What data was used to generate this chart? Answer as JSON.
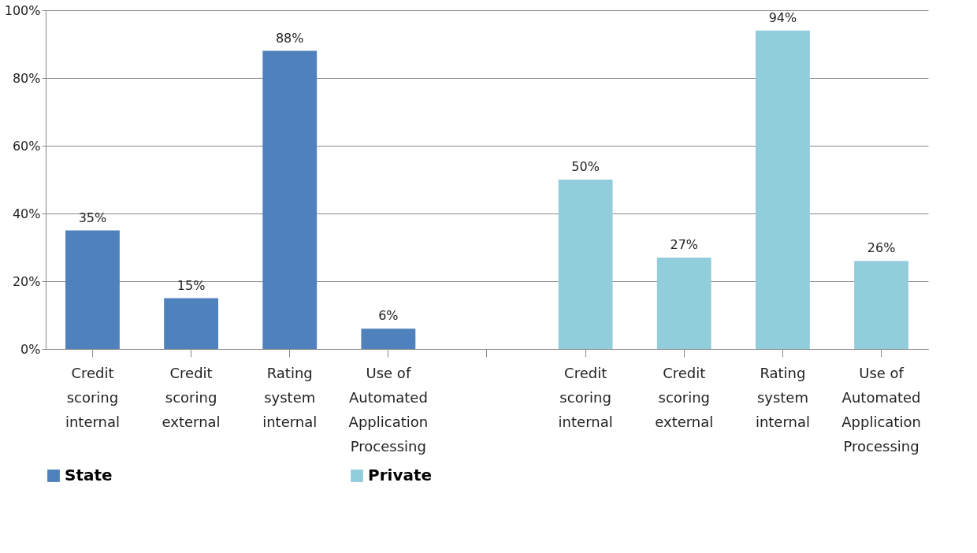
{
  "chart_data": {
    "type": "bar",
    "categories": [
      "Credit scoring internal",
      "Credit scoring external",
      "Rating system internal",
      "Use of Automated Application Processing",
      null,
      "Credit scoring internal",
      "Credit scoring external",
      "Rating system internal",
      "Use of Automated Application Processing"
    ],
    "series": [
      {
        "name": "State",
        "color": "#4f81bd",
        "values": [
          35,
          15,
          88,
          6,
          null,
          null,
          null,
          null,
          null
        ],
        "value_labels": [
          "35%",
          "15%",
          "88%",
          "6%",
          null,
          null,
          null,
          null,
          null
        ]
      },
      {
        "name": "Private",
        "color": "#92cddc",
        "values": [
          null,
          null,
          null,
          null,
          null,
          50,
          27,
          94,
          26
        ],
        "value_labels": [
          null,
          null,
          null,
          null,
          null,
          "50%",
          "27%",
          "94%",
          "26%"
        ]
      }
    ],
    "ylim": [
      0,
      100
    ],
    "yticks": [
      {
        "value": 0,
        "label": "0%"
      },
      {
        "value": 20,
        "label": "20%"
      },
      {
        "value": 40,
        "label": "40%"
      },
      {
        "value": 60,
        "label": "60%"
      },
      {
        "value": 80,
        "label": "80%"
      },
      {
        "value": 100,
        "label": "100%"
      }
    ],
    "grid": "y",
    "legend": "bottom"
  }
}
